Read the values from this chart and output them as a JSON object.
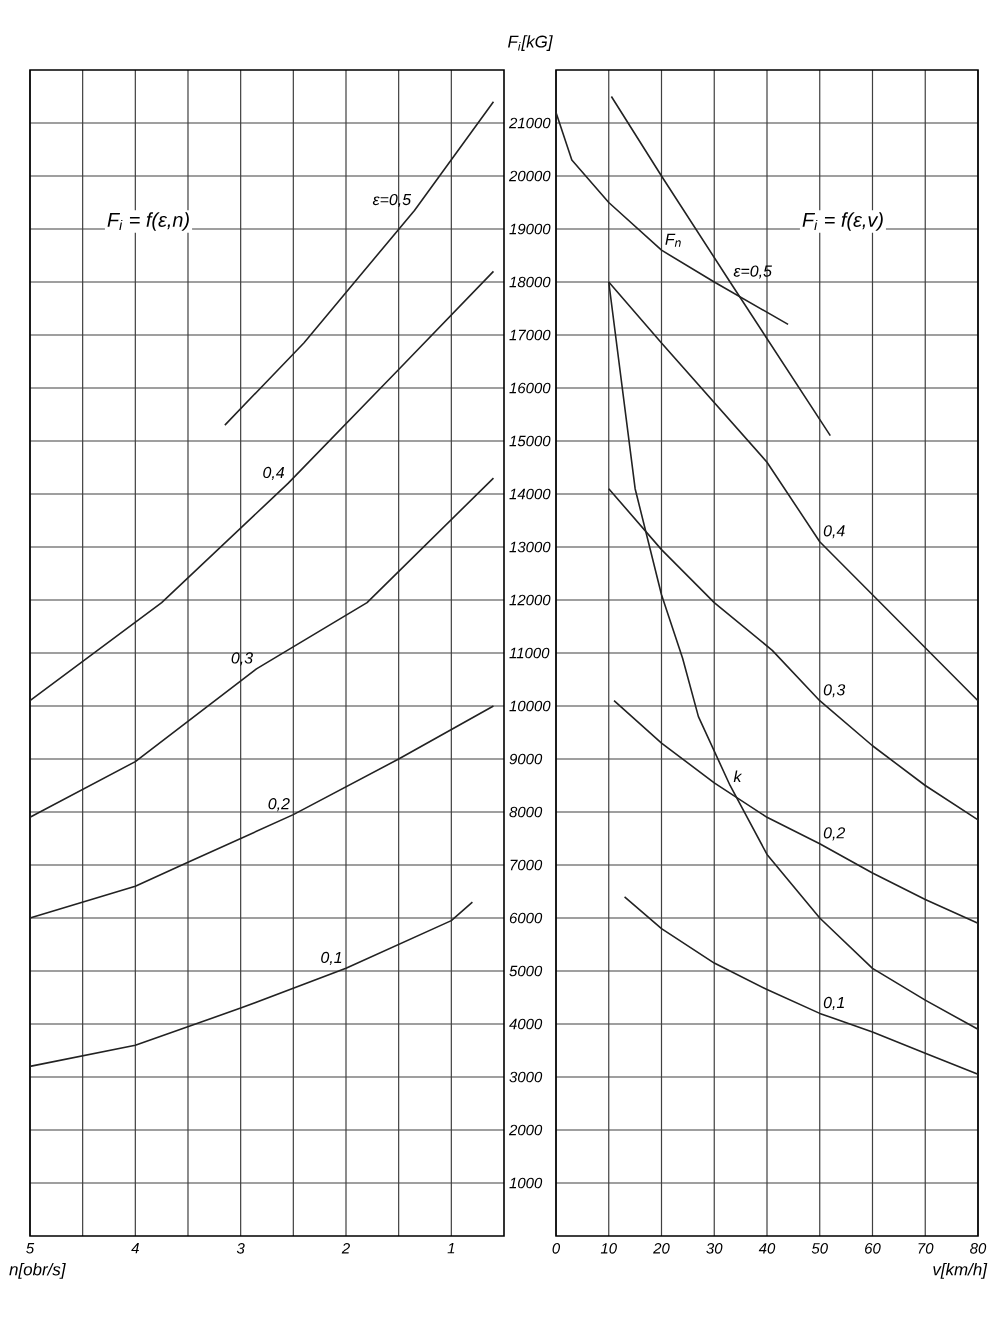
{
  "chart_data": [
    {
      "type": "line",
      "xlabel": "n[obr/s]",
      "ylabel": "F$_{i}$[kG]",
      "annotations": [
        "F$_{i}$ = f(ε,n)"
      ],
      "xlim": [
        5,
        0.5
      ],
      "xticks": [
        5,
        {
          "value": 4.5,
          "label": null
        },
        4,
        {
          "value": 3.5,
          "label": null
        },
        3,
        {
          "value": 2.5,
          "label": null
        },
        2,
        {
          "value": 1.5,
          "label": null
        },
        1
      ],
      "ylim": [
        0,
        22000
      ],
      "yticks": [
        1000,
        2000,
        3000,
        4000,
        5000,
        6000,
        7000,
        8000,
        9000,
        10000,
        11000,
        12000,
        13000,
        14000,
        15000,
        16000,
        17000,
        18000,
        19000,
        20000,
        21000
      ],
      "grid": true,
      "marker": "none",
      "line_style": "solid",
      "series": [
        {
          "name": "ε=0,5",
          "color": "#222222",
          "x": [
            3.15,
            2.4,
            1.35,
            0.6
          ],
          "values": [
            15300,
            16850,
            19350,
            21400
          ]
        },
        {
          "name": "0,4",
          "color": "#222222",
          "x": [
            5,
            3.75,
            2.55,
            1.5,
            0.6
          ],
          "values": [
            10100,
            11950,
            14200,
            16350,
            18200
          ]
        },
        {
          "name": "0,3",
          "color": "#222222",
          "x": [
            5,
            4,
            2.85,
            1.8,
            0.6
          ],
          "values": [
            7900,
            8950,
            10700,
            11950,
            14300
          ]
        },
        {
          "name": "0,2",
          "color": "#222222",
          "x": [
            5,
            4,
            3.5,
            2.5,
            1.5,
            0.6
          ],
          "values": [
            6000,
            6600,
            7050,
            7950,
            9000,
            10000
          ]
        },
        {
          "name": "0,1",
          "color": "#222222",
          "x": [
            5,
            4,
            3,
            2,
            1,
            0.8
          ],
          "values": [
            3200,
            3600,
            4300,
            5050,
            5950,
            6300
          ]
        }
      ]
    },
    {
      "type": "line",
      "xlabel": "v[km/h]",
      "annotations": [
        "F$_{i}$ = f(ε,v)"
      ],
      "xlim": [
        0,
        80
      ],
      "xticks": [
        0,
        10,
        20,
        30,
        40,
        50,
        60,
        70,
        80
      ],
      "ylim": [
        0,
        22000
      ],
      "yticks": [
        1000,
        2000,
        3000,
        4000,
        5000,
        6000,
        7000,
        8000,
        9000,
        10000,
        11000,
        12000,
        13000,
        14000,
        15000,
        16000,
        17000,
        18000,
        19000,
        20000,
        21000
      ],
      "tick_labels": "x",
      "grid": true,
      "marker": "none",
      "line_style": "solid",
      "series": [
        {
          "name": "ε=0,5",
          "color": "#222222",
          "x": [
            10.5,
            20,
            33,
            52
          ],
          "values": [
            21500,
            20000,
            18000,
            15100
          ]
        },
        {
          "name": "0,4",
          "color": "#222222",
          "x": [
            10,
            20,
            40,
            50,
            70,
            80
          ],
          "values": [
            18000,
            16850,
            14600,
            13100,
            11100,
            10100
          ]
        },
        {
          "name": "0,3",
          "color": "#222222",
          "x": [
            10,
            20,
            30,
            41,
            50,
            60,
            70,
            80
          ],
          "values": [
            14100,
            12950,
            11950,
            11050,
            10100,
            9250,
            8500,
            7850
          ]
        },
        {
          "name": "0,2",
          "color": "#222222",
          "x": [
            11,
            20,
            30,
            40,
            50,
            60,
            70,
            80
          ],
          "values": [
            10100,
            9300,
            8550,
            7900,
            7400,
            6850,
            6350,
            5900
          ]
        },
        {
          "name": "0,1",
          "color": "#222222",
          "x": [
            13,
            20,
            30,
            40,
            50,
            60,
            70,
            80
          ],
          "values": [
            6400,
            5800,
            5150,
            4650,
            4200,
            3850,
            3450,
            3050
          ]
        },
        {
          "name": "k",
          "color": "#222222",
          "x": [
            10,
            15,
            20,
            24,
            27,
            33,
            40,
            50,
            60,
            70,
            80
          ],
          "values": [
            18000,
            14100,
            12100,
            10900,
            9800,
            8500,
            7200,
            6000,
            5050,
            4450,
            3900
          ]
        },
        {
          "name": "F$_{n}$",
          "color": "#222222",
          "x": [
            0,
            3,
            10,
            20,
            30,
            44
          ],
          "values": [
            21200,
            20300,
            19500,
            18600,
            18000,
            17200
          ]
        }
      ]
    }
  ]
}
